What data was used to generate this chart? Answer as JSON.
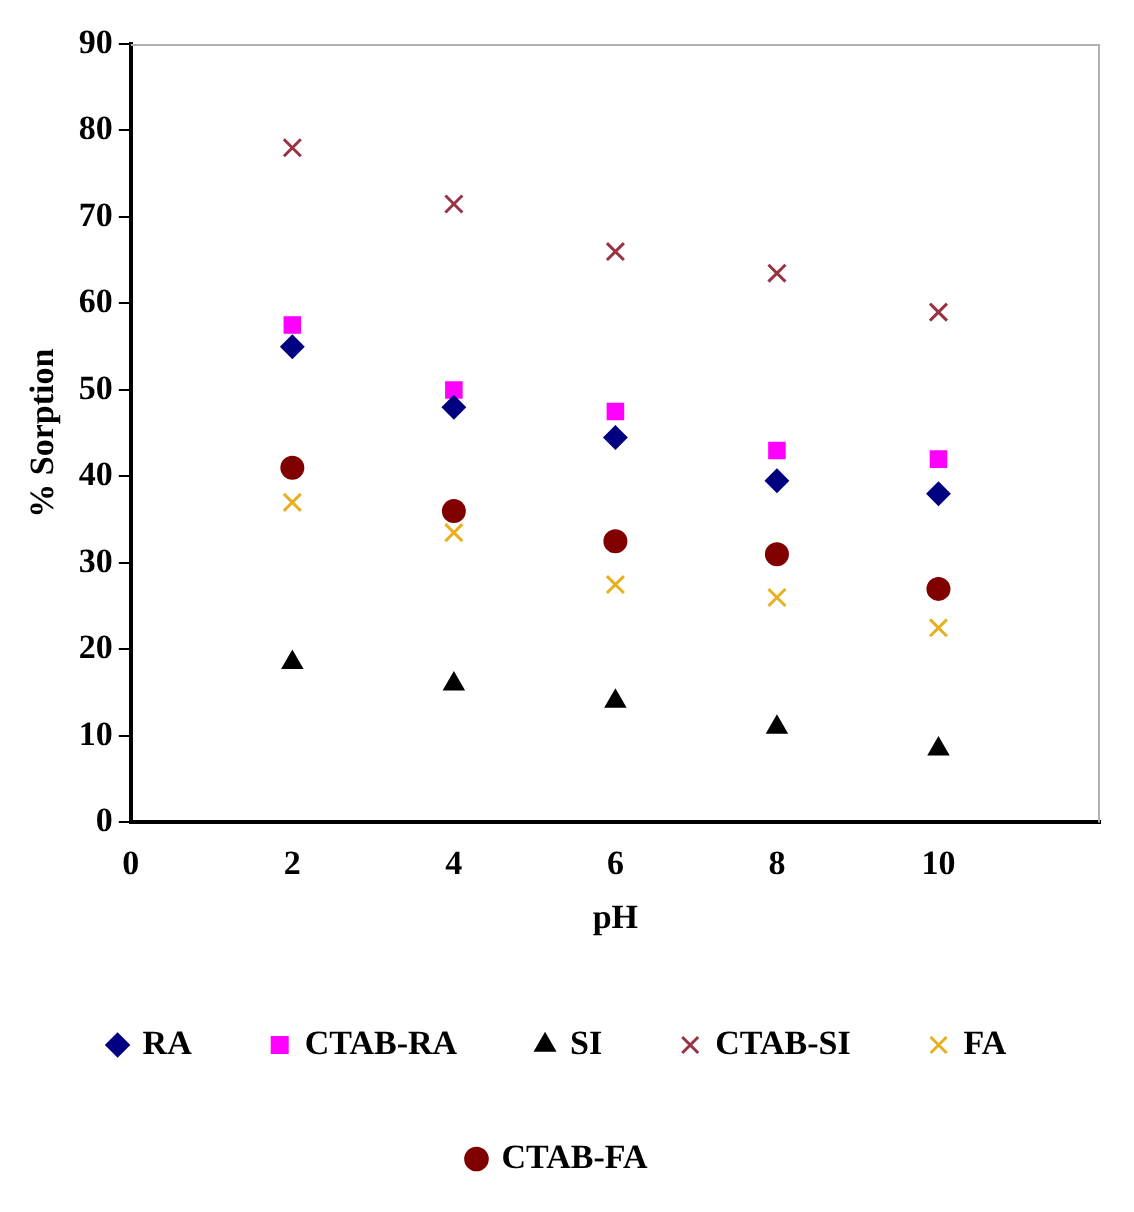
{
  "chart_data": {
    "type": "scatter",
    "xlabel": "pH",
    "ylabel": "% Sorption",
    "x": [
      2,
      4,
      6,
      8,
      10
    ],
    "xlim": [
      0,
      12
    ],
    "xticks": [
      0,
      2,
      4,
      6,
      8,
      10,
      {
        "value": 12,
        "label": null
      }
    ],
    "ylim": [
      0,
      90
    ],
    "yticks": [
      0,
      10,
      20,
      30,
      40,
      50,
      60,
      70,
      80,
      90
    ],
    "grid": false,
    "legend": "bottom",
    "series": [
      {
        "name": "RA",
        "color": "#000080",
        "marker": "diamond",
        "values": [
          55,
          48,
          44.5,
          39.5,
          38
        ]
      },
      {
        "name": "CTAB-RA",
        "color": "#ff00ff",
        "marker": "square",
        "values": [
          57.5,
          50,
          47.5,
          43,
          42
        ]
      },
      {
        "name": "SI",
        "color": "#000000",
        "marker": "triangle",
        "values": [
          18.5,
          16,
          14,
          11,
          8.5
        ]
      },
      {
        "name": "CTAB-SI",
        "color": "#993344",
        "marker": "cross",
        "values": [
          78,
          71.5,
          66,
          63.5,
          59
        ]
      },
      {
        "name": "FA",
        "color": "#e8b020",
        "marker": "cross",
        "values": [
          37,
          33.5,
          27.5,
          26,
          22.5
        ]
      },
      {
        "name": "CTAB-FA",
        "color": "#800000",
        "marker": "circle",
        "values": [
          41,
          36,
          32.5,
          31,
          27
        ]
      }
    ]
  }
}
